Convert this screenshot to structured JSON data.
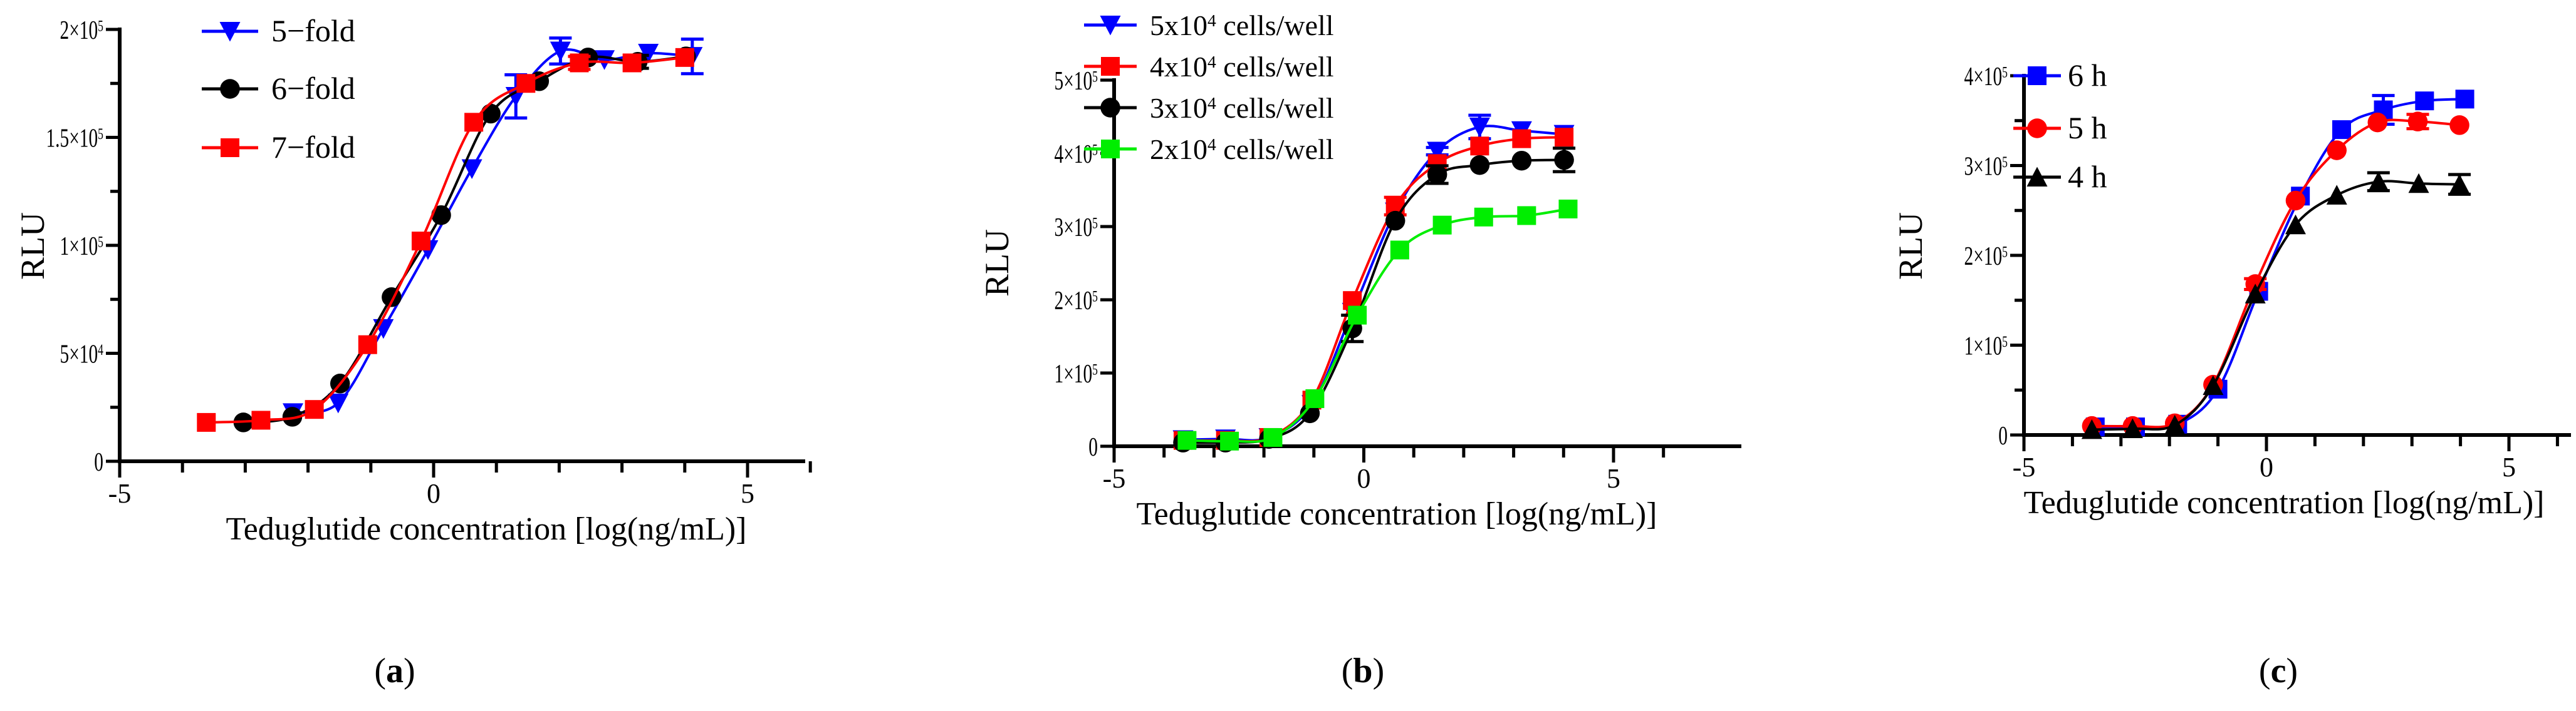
{
  "chart_data": [
    {
      "type": "line",
      "panel_label": "(a)",
      "panel_letter": "a",
      "xlabel": "Teduglutide concentration [log(ng/mL)]",
      "ylabel": "RLU",
      "xlim": [
        -5,
        6
      ],
      "ylim": [
        0,
        200000
      ],
      "x_major_ticks": [
        -5,
        0,
        5
      ],
      "x_minor_step": 1,
      "y_ticks": [
        0,
        50000,
        100000,
        150000,
        200000
      ],
      "y_tick_labels": [
        "0",
        "5×10^4",
        "1×10^5",
        "1.5×10^5",
        "2×10^5"
      ],
      "y_minor_step": 25000,
      "x_tick_labels": [
        "-5",
        "0",
        "5"
      ],
      "grid": false,
      "legend_position": "top-left",
      "series": [
        {
          "name": "5−fold",
          "color": "#0000ff",
          "marker": "triangle-down",
          "x": [
            -2.24,
            -1.52,
            -0.8,
            -0.09,
            0.61,
            1.31,
            2.02,
            2.72,
            3.42,
            4.12
          ],
          "y": [
            22500,
            27000,
            61500,
            98000,
            135500,
            169000,
            190000,
            186000,
            189000,
            187500
          ],
          "err": [
            0,
            0,
            0,
            0,
            0,
            10000,
            6000,
            0,
            0,
            8000
          ]
        },
        {
          "name": "6−fold",
          "color": "#000000",
          "marker": "circle",
          "x": [
            -3.03,
            -2.25,
            -1.49,
            -0.67,
            0.12,
            0.91,
            1.68,
            2.46,
            3.25,
            4.02
          ],
          "y": [
            18000,
            20600,
            36000,
            76000,
            114000,
            161000,
            176000,
            187000,
            185000,
            187500
          ],
          "err": [
            0,
            0,
            0,
            0,
            0,
            0,
            0,
            0,
            3000,
            0
          ]
        },
        {
          "name": "7−fold",
          "color": "#ff0000",
          "marker": "square",
          "x": [
            -3.62,
            -2.75,
            -1.9,
            -1.05,
            -0.2,
            0.64,
            1.47,
            2.32,
            3.16,
            4.0
          ],
          "y": [
            18000,
            19000,
            24000,
            54000,
            102000,
            157000,
            175000,
            184500,
            184500,
            187000
          ],
          "err": [
            0,
            0,
            0,
            0,
            0,
            0,
            0,
            3000,
            0,
            0
          ]
        }
      ]
    },
    {
      "type": "line",
      "panel_label": "(b)",
      "panel_letter": "b",
      "xlabel": "Teduglutide concentration [log(ng/mL)]",
      "ylabel": "RLU",
      "xlim": [
        -5,
        6
      ],
      "ylim": [
        0,
        500000
      ],
      "x_major_ticks": [
        -5,
        0,
        5
      ],
      "x_minor_step": 1,
      "y_ticks": [
        0,
        100000,
        200000,
        300000,
        400000,
        500000
      ],
      "y_tick_labels": [
        "0",
        "1×10^5",
        "2×10^5",
        "3×10^5",
        "4×10^5",
        "5×10^5"
      ],
      "y_minor_step": 100000,
      "x_tick_labels": [
        "-5",
        "0",
        "5"
      ],
      "grid": false,
      "legend_position": "top-left",
      "series": [
        {
          "name": "5x10^4 cells/well",
          "color": "#0000ff",
          "marker": "triangle-down",
          "x": [
            -3.62,
            -2.77,
            -1.9,
            -1.04,
            -0.23,
            0.63,
            1.47,
            2.32,
            3.16,
            4.01
          ],
          "y": [
            9000,
            10000,
            12000,
            57000,
            183000,
            320000,
            403000,
            436000,
            431000,
            426000
          ],
          "err": [
            0,
            0,
            0,
            0,
            0,
            0,
            5000,
            16000,
            0,
            0
          ]
        },
        {
          "name": "4x10^4 cells/well",
          "color": "#ff0000",
          "marker": "square",
          "x": [
            -3.62,
            -2.77,
            -1.9,
            -1.04,
            -0.23,
            0.63,
            1.47,
            2.32,
            3.16,
            4.01
          ],
          "y": [
            8000,
            8000,
            12000,
            63000,
            199000,
            328000,
            386000,
            410000,
            420000,
            422000
          ],
          "err": [
            0,
            0,
            0,
            0,
            0,
            12000,
            0,
            0,
            0,
            0
          ]
        },
        {
          "name": "3x10^4 cells/well",
          "color": "#000000",
          "marker": "circle",
          "x": [
            -3.62,
            -2.77,
            -1.9,
            -1.08,
            -0.23,
            0.63,
            1.47,
            2.32,
            3.16,
            4.01
          ],
          "y": [
            5000,
            5000,
            10000,
            45000,
            161000,
            308000,
            371000,
            384000,
            390000,
            391000
          ],
          "err": [
            0,
            0,
            0,
            0,
            18000,
            0,
            12000,
            0,
            0,
            16000
          ]
        },
        {
          "name": "2x10^4 cells/well",
          "color": "#00ee00",
          "marker": "square",
          "x": [
            -3.54,
            -2.69,
            -1.82,
            -0.98,
            -0.13,
            0.72,
            1.57,
            2.4,
            3.26,
            4.09
          ],
          "y": [
            8000,
            7000,
            12000,
            65000,
            179000,
            268000,
            302000,
            313000,
            315000,
            324000
          ],
          "err": [
            0,
            0,
            0,
            0,
            0,
            0,
            0,
            0,
            0,
            0
          ]
        }
      ]
    },
    {
      "type": "line",
      "panel_label": "(c)",
      "panel_letter": "c",
      "xlabel": "Teduglutide concentration [log(ng/mL)]",
      "ylabel": "RLU",
      "xlim": [
        -5,
        6
      ],
      "ylim": [
        0,
        400000
      ],
      "x_major_ticks": [
        -5,
        0,
        5
      ],
      "x_minor_step": 1,
      "y_ticks": [
        0,
        100000,
        200000,
        300000,
        400000
      ],
      "y_tick_labels": [
        "0",
        "1×10^5",
        "2×10^5",
        "3×10^5",
        "4×10^5"
      ],
      "y_minor_step": 50000,
      "x_tick_labels": [
        "-5",
        "0",
        "5"
      ],
      "grid": false,
      "legend_position": "top-left",
      "series": [
        {
          "name": "6 h",
          "color": "#0000ff",
          "marker": "square",
          "x": [
            -3.53,
            -2.7,
            -1.83,
            -1.0,
            -0.16,
            0.7,
            1.55,
            2.41,
            3.26,
            4.09
          ],
          "y": [
            9000,
            9000,
            12000,
            51000,
            160000,
            266000,
            340000,
            362000,
            372000,
            374000
          ],
          "err": [
            0,
            0,
            0,
            0,
            0,
            0,
            0,
            16000,
            0,
            0
          ]
        },
        {
          "name": "5 h",
          "color": "#ff0000",
          "marker": "circle",
          "x": [
            -3.6,
            -2.76,
            -1.89,
            -1.1,
            -0.23,
            0.6,
            1.45,
            2.29,
            3.12,
            3.98
          ],
          "y": [
            10000,
            10000,
            13000,
            56000,
            168000,
            261000,
            317000,
            348000,
            349000,
            345000
          ],
          "err": [
            0,
            0,
            0,
            0,
            6000,
            0,
            0,
            0,
            8000,
            0
          ]
        },
        {
          "name": "4 h",
          "color": "#000000",
          "marker": "triangle-up",
          "x": [
            -3.6,
            -2.76,
            -1.89,
            -1.1,
            -0.23,
            0.6,
            1.45,
            2.31,
            3.14,
            3.98
          ],
          "y": [
            6000,
            7000,
            11000,
            55000,
            157000,
            234000,
            267000,
            282000,
            280000,
            279000
          ],
          "err": [
            0,
            0,
            0,
            0,
            0,
            0,
            0,
            10000,
            0,
            11000
          ]
        }
      ]
    }
  ]
}
